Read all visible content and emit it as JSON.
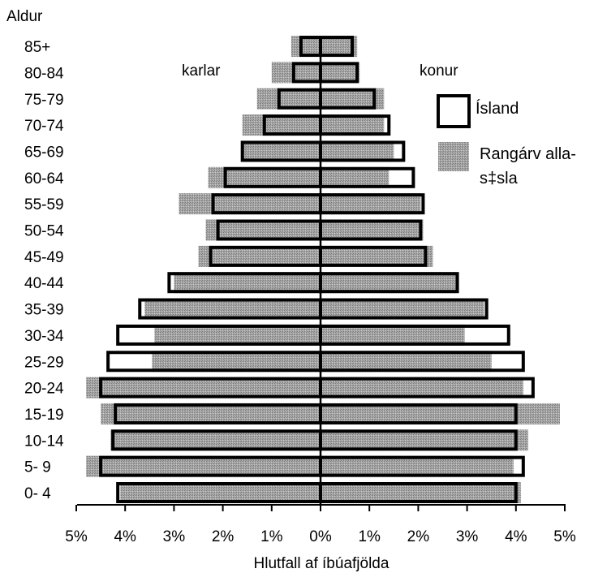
{
  "chart_data": {
    "type": "bar",
    "orientation": "horizontal-population-pyramid",
    "title": "",
    "ylabel": "Aldur",
    "xlabel": "Hlutfall af íbúafjölda",
    "group_labels": {
      "left": "karlar",
      "right": "konur"
    },
    "categories": [
      "0- 4",
      "5- 9",
      "10-14",
      "15-19",
      "20-24",
      "25-29",
      "30-34",
      "35-39",
      "40-44",
      "45-49",
      "50-54",
      "55-59",
      "60-64",
      "65-69",
      "70-74",
      "75-79",
      "80-84",
      "85+"
    ],
    "x_ticks": [
      "5%",
      "4%",
      "3%",
      "2%",
      "1%",
      "0%",
      "1%",
      "2%",
      "3%",
      "4%",
      "5%"
    ],
    "xlim": [
      -5,
      5
    ],
    "grid": false,
    "legend_position": "right",
    "series": [
      {
        "name": "Ísland",
        "style": "outline",
        "color": "#000000",
        "male": [
          4.15,
          4.5,
          4.25,
          4.2,
          4.5,
          4.35,
          4.15,
          3.7,
          3.1,
          2.25,
          2.1,
          2.2,
          1.95,
          1.6,
          1.15,
          0.85,
          0.55,
          0.4
        ],
        "female": [
          4.0,
          4.15,
          4.0,
          4.0,
          4.35,
          4.15,
          3.85,
          3.4,
          2.8,
          2.15,
          2.05,
          2.1,
          1.9,
          1.7,
          1.4,
          1.1,
          0.75,
          0.65
        ]
      },
      {
        "name": "Rangárvalla-\nsýsla",
        "label_lines": [
          "Rangárv alla-",
          "s‡sla"
        ],
        "style": "shaded",
        "color": "#9c9c9c",
        "male": [
          4.1,
          4.8,
          4.3,
          4.5,
          4.8,
          3.45,
          3.4,
          3.6,
          3.0,
          2.5,
          2.35,
          2.9,
          2.3,
          1.6,
          1.6,
          1.3,
          1.0,
          0.6
        ],
        "female": [
          4.1,
          3.95,
          4.25,
          4.9,
          4.15,
          3.5,
          2.95,
          3.35,
          2.8,
          2.3,
          2.1,
          2.05,
          1.4,
          1.5,
          1.3,
          1.3,
          0.8,
          0.75
        ]
      }
    ]
  }
}
